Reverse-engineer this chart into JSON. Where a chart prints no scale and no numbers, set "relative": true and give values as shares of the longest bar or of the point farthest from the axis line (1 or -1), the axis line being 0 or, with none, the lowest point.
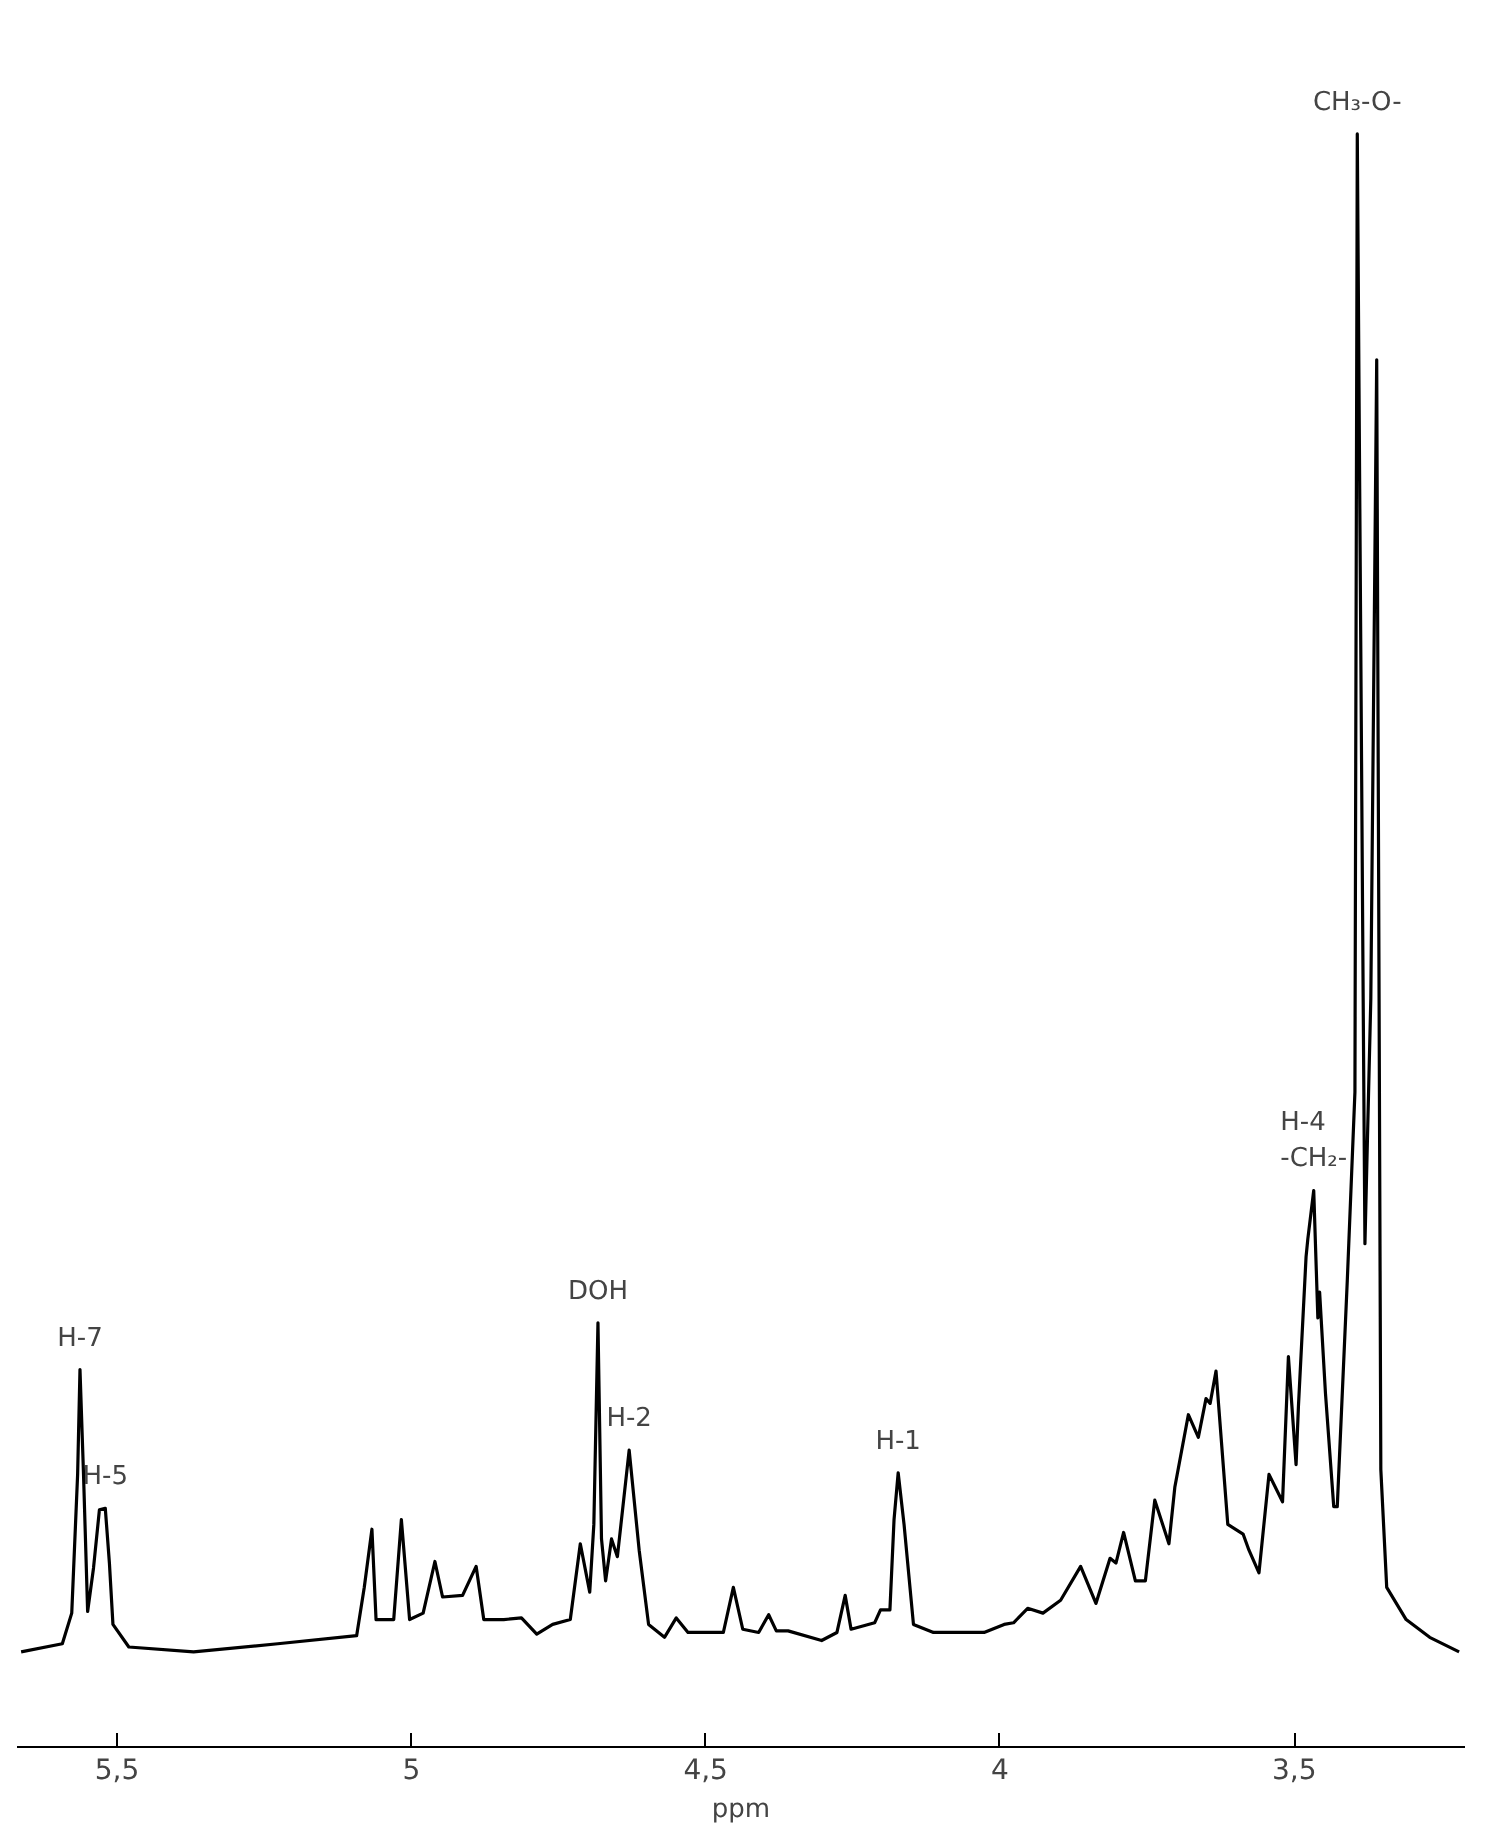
{
  "chart_data": {
    "type": "line",
    "relative": true,
    "xlabel": "ppm",
    "xlim": [
      5.67,
      3.21
    ],
    "xticks": [
      {
        "value": 5.5,
        "label": "5,5"
      },
      5,
      {
        "value": 4.5,
        "label": "4,5"
      },
      4,
      {
        "value": 3.5,
        "label": "3,5"
      }
    ],
    "grid": false,
    "marker": "none",
    "line_style": "solid",
    "series": [
      {
        "color": "#000000",
        "x": [
          5.663,
          5.593,
          5.577,
          5.567,
          5.563,
          5.557,
          5.55,
          5.54,
          5.53,
          5.52,
          5.513,
          5.507,
          5.48,
          5.37,
          5.227,
          5.093,
          5.08,
          5.067,
          5.06,
          5.03,
          5.017,
          5.003,
          4.98,
          4.96,
          4.947,
          4.913,
          4.89,
          4.877,
          4.843,
          4.813,
          4.787,
          4.76,
          4.73,
          4.713,
          4.697,
          4.69,
          4.683,
          4.677,
          4.67,
          4.66,
          4.65,
          4.63,
          4.613,
          4.597,
          4.57,
          4.55,
          4.53,
          4.47,
          4.453,
          4.437,
          4.41,
          4.393,
          4.38,
          4.36,
          4.303,
          4.277,
          4.263,
          4.253,
          4.213,
          4.203,
          4.187,
          4.18,
          4.173,
          4.163,
          4.147,
          4.113,
          4.027,
          3.993,
          3.977,
          3.953,
          3.927,
          3.897,
          3.863,
          3.837,
          3.813,
          3.803,
          3.79,
          3.77,
          3.753,
          3.737,
          3.713,
          3.703,
          3.68,
          3.663,
          3.65,
          3.643,
          3.633,
          3.613,
          3.587,
          3.577,
          3.56,
          3.543,
          3.52,
          3.51,
          3.497,
          3.493,
          3.48,
          3.477,
          3.467,
          3.46,
          3.457,
          3.447,
          3.433,
          3.427,
          3.41,
          3.397,
          3.393,
          3.383,
          3.38,
          3.37,
          3.36,
          3.353,
          3.343,
          3.31,
          3.27,
          3.22
        ],
        "values": [
          0.059,
          0.064,
          0.083,
          0.169,
          0.234,
          0.169,
          0.084,
          0.111,
          0.147,
          0.148,
          0.114,
          0.076,
          0.062,
          0.059,
          0.064,
          0.069,
          0.099,
          0.135,
          0.079,
          0.079,
          0.141,
          0.079,
          0.083,
          0.115,
          0.093,
          0.094,
          0.112,
          0.079,
          0.079,
          0.08,
          0.07,
          0.076,
          0.079,
          0.126,
          0.096,
          0.138,
          0.263,
          0.129,
          0.103,
          0.129,
          0.118,
          0.184,
          0.122,
          0.076,
          0.068,
          0.08,
          0.071,
          0.071,
          0.099,
          0.073,
          0.071,
          0.082,
          0.072,
          0.072,
          0.066,
          0.071,
          0.094,
          0.073,
          0.077,
          0.085,
          0.085,
          0.141,
          0.17,
          0.138,
          0.076,
          0.071,
          0.071,
          0.076,
          0.077,
          0.086,
          0.083,
          0.091,
          0.112,
          0.089,
          0.117,
          0.114,
          0.133,
          0.103,
          0.103,
          0.153,
          0.126,
          0.161,
          0.206,
          0.192,
          0.216,
          0.213,
          0.233,
          0.138,
          0.132,
          0.122,
          0.108,
          0.169,
          0.152,
          0.242,
          0.175,
          0.211,
          0.304,
          0.315,
          0.345,
          0.266,
          0.282,
          0.219,
          0.149,
          0.149,
          0.289,
          0.406,
          1.0,
          0.464,
          0.312,
          0.464,
          0.86,
          0.172,
          0.099,
          0.079,
          0.068,
          0.059
        ]
      }
    ],
    "annotations": [
      {
        "text": "H-7",
        "x": 5.563,
        "y": 0.234
      },
      {
        "text": "H-5",
        "x": 5.52,
        "y": 0.148
      },
      {
        "text": "DOH",
        "x": 4.683,
        "y": 0.263
      },
      {
        "text": "H-2",
        "x": 4.63,
        "y": 0.184
      },
      {
        "text": "H-1",
        "x": 4.173,
        "y": 0.17
      },
      {
        "text": "H-4\n-CH₂-",
        "x": 3.467,
        "y": 0.345
      },
      {
        "text": "CH₃-O-",
        "x": 3.393,
        "y": 1.0
      }
    ]
  }
}
